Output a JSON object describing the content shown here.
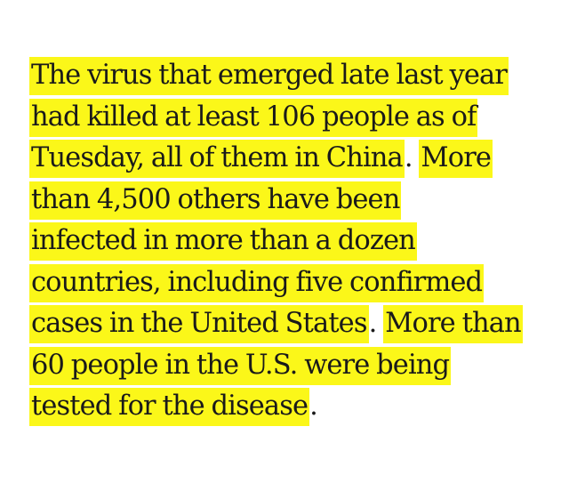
{
  "paragraph": {
    "lines": [
      {
        "segments": [
          {
            "text": "The virus that emerged late last year",
            "highlighted": true
          }
        ]
      },
      {
        "segments": [
          {
            "text": "had killed at least 106 people as of",
            "highlighted": true
          }
        ]
      },
      {
        "segments": [
          {
            "text": "Tuesday, all of them in China",
            "highlighted": true
          },
          {
            "text": ". ",
            "highlighted": false
          },
          {
            "text": "More",
            "highlighted": true
          }
        ]
      },
      {
        "segments": [
          {
            "text": "than 4,500 others have been",
            "highlighted": true
          }
        ]
      },
      {
        "segments": [
          {
            "text": "infected in more than a dozen",
            "highlighted": true
          }
        ]
      },
      {
        "segments": [
          {
            "text": "countries, including five confirmed",
            "highlighted": true
          }
        ]
      },
      {
        "segments": [
          {
            "text": "cases in the United States",
            "highlighted": true
          },
          {
            "text": ". ",
            "highlighted": false
          },
          {
            "text": "More than",
            "highlighted": true
          }
        ]
      },
      {
        "segments": [
          {
            "text": "60 people in the U.S. were being",
            "highlighted": true
          }
        ]
      },
      {
        "segments": [
          {
            "text": "tested for the disease",
            "highlighted": true
          },
          {
            "text": ".",
            "highlighted": false
          }
        ]
      }
    ]
  },
  "colors": {
    "highlight": "#fbf719",
    "text": "#1a1a1a",
    "background": "#ffffff"
  }
}
